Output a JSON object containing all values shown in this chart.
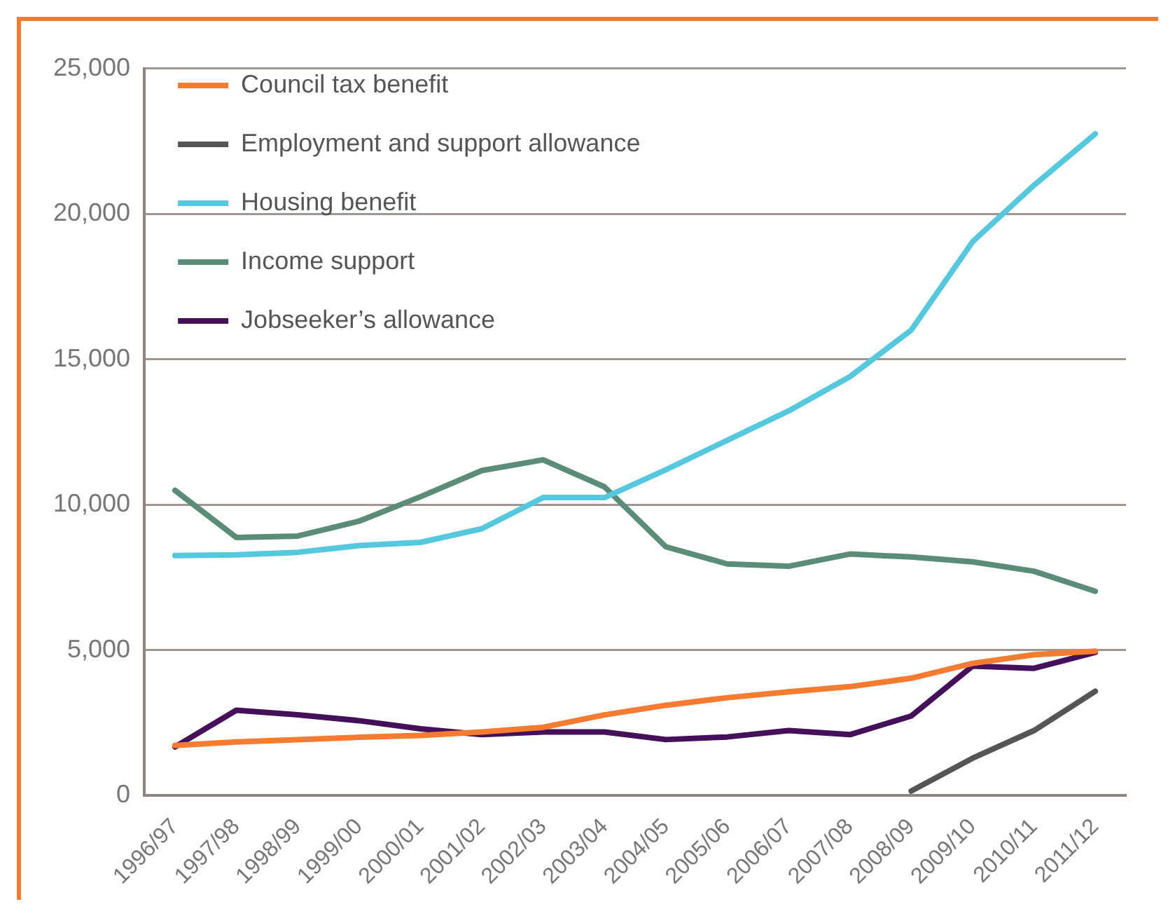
{
  "chart_data": {
    "type": "line",
    "categories": [
      "1996/97",
      "1997/98",
      "1998/99",
      "1999/00",
      "2000/01",
      "2001/02",
      "2002/03",
      "2003/04",
      "2004/05",
      "2005/06",
      "2006/07",
      "2007/08",
      "2008/09",
      "2009/10",
      "2010/11",
      "2011/12"
    ],
    "series": [
      {
        "name": "Council tax benefit",
        "color": "#f47b30",
        "values": [
          1720,
          1840,
          1920,
          2000,
          2060,
          2180,
          2340,
          2770,
          3100,
          3360,
          3560,
          3740,
          4030,
          4540,
          4840,
          4960
        ]
      },
      {
        "name": "Employment and support allowance",
        "color": "#555555",
        "values": [
          null,
          null,
          null,
          null,
          null,
          null,
          null,
          null,
          null,
          null,
          null,
          null,
          150,
          1280,
          2230,
          3580
        ]
      },
      {
        "name": "Housing benefit",
        "color": "#55c8de",
        "values": [
          8250,
          8270,
          8360,
          8590,
          8700,
          9170,
          10240,
          10240,
          11200,
          12210,
          13220,
          14400,
          16000,
          19040,
          20980,
          22750
        ]
      },
      {
        "name": "Income support",
        "color": "#5b8c77",
        "values": [
          10490,
          8870,
          8920,
          9430,
          10270,
          11170,
          11540,
          10610,
          8550,
          7960,
          7880,
          8300,
          8200,
          8030,
          7710,
          7020
        ]
      },
      {
        "name": "Jobseeker’s allowance",
        "color": "#45105a",
        "values": [
          1670,
          2930,
          2770,
          2570,
          2290,
          2090,
          2180,
          2180,
          1920,
          2010,
          2230,
          2090,
          2730,
          4450,
          4370,
          4920
        ]
      }
    ],
    "ylim": [
      0,
      25000
    ],
    "yticks": [
      {
        "value": 0,
        "label": "0"
      },
      {
        "value": 5000,
        "label": "5,000"
      },
      {
        "value": 10000,
        "label": "10,000"
      },
      {
        "value": 15000,
        "label": "15,000"
      },
      {
        "value": 20000,
        "label": "20,000"
      },
      {
        "value": 25000,
        "label": "25,000"
      }
    ],
    "grid": "y",
    "legend": "top left",
    "marker": "none",
    "line_style": "solid"
  }
}
